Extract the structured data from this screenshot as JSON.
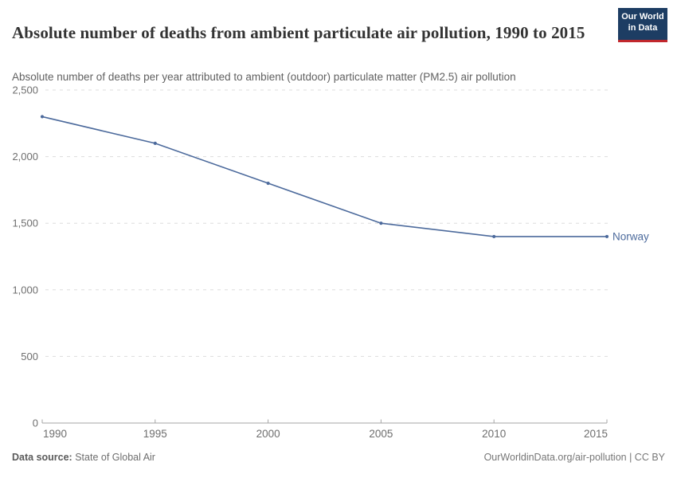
{
  "header": {
    "title": "Absolute number of deaths from ambient particulate air pollution, 1990 to 2015",
    "subtitle": "Absolute number of deaths per year attributed to ambient (outdoor) particulate matter (PM2.5) air pollution",
    "logo": {
      "line1": "Our World",
      "line2": "in Data",
      "bg_color": "#1d3d63",
      "accent_color": "#c1272d"
    }
  },
  "chart_data": {
    "type": "line",
    "title": "Absolute number of deaths from ambient particulate air pollution, 1990 to 2015",
    "x": [
      1990,
      1995,
      2000,
      2005,
      2010,
      2015
    ],
    "xtick_labels": [
      "1990",
      "1995",
      "2000",
      "2005",
      "2010",
      "2015"
    ],
    "series": [
      {
        "name": "Norway",
        "values": [
          2300,
          2100,
          1800,
          1500,
          1400,
          1400
        ],
        "color": "#4C6A9C"
      }
    ],
    "xlabel": "",
    "ylabel": "",
    "ylim": [
      0,
      2500
    ],
    "xlim": [
      1990,
      2015
    ],
    "yticks": [
      0,
      500,
      1000,
      1500,
      2000,
      2500
    ],
    "ytick_labels": [
      "0",
      "500",
      "1,000",
      "1,500",
      "2,000",
      "2,500"
    ],
    "grid": "horizontal-dashed",
    "legend_position": "end-of-line",
    "gridline_color": "#dddddd",
    "axis_color": "#a5a5a5",
    "tick_label_color": "#6e6e6e"
  },
  "footer": {
    "source_label": "Data source:",
    "source_value": "State of Global Air",
    "credit": "OurWorldinData.org/air-pollution | CC BY"
  }
}
